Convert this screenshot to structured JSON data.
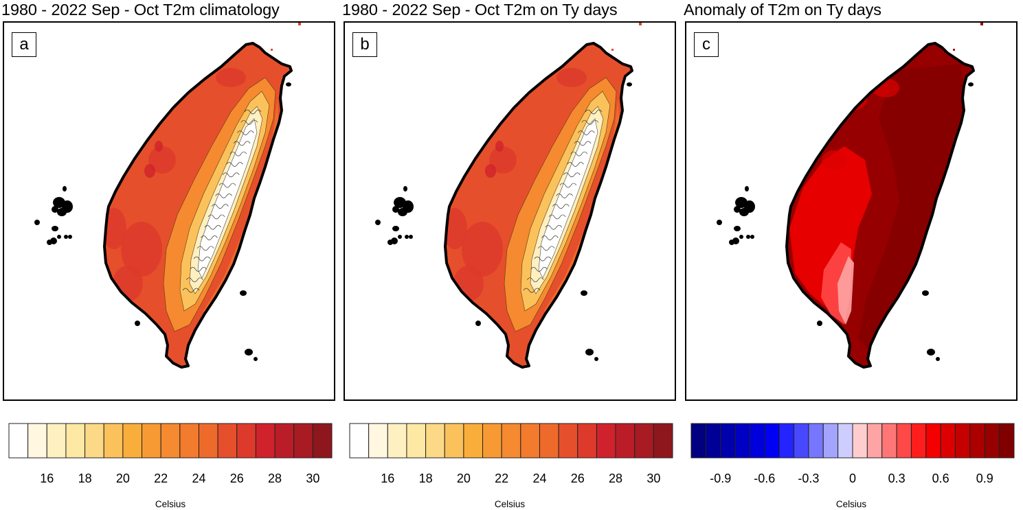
{
  "figure": {
    "panels": [
      {
        "id": "a",
        "title": "1980 - 2022 Sep - Oct T2m climatology",
        "label": "a",
        "field": "t2m-climatology",
        "colorbar": {
          "unit": "Celsius",
          "colors": [
            "#ffffff",
            "#fff7e0",
            "#fff0c2",
            "#fde8a4",
            "#fcd986",
            "#fbc25c",
            "#f9ae3b",
            "#f89a33",
            "#f58a30",
            "#f27b2d",
            "#ee6a2b",
            "#e64f2b",
            "#dd3a2b",
            "#d0222c",
            "#bb1d28",
            "#a81b23",
            "#8e171d"
          ],
          "ticks": [
            "16",
            "18",
            "20",
            "22",
            "24",
            "26",
            "28",
            "30"
          ],
          "tick_positions": [
            2,
            4,
            6,
            8,
            10,
            12,
            14,
            16
          ]
        }
      },
      {
        "id": "b",
        "title": "1980 - 2022 Sep - Oct T2m on Ty days",
        "label": "b",
        "field": "t2m-typhoon-days",
        "colorbar": {
          "unit": "Celsius",
          "colors": [
            "#ffffff",
            "#fff7e0",
            "#fff0c2",
            "#fde8a4",
            "#fcd986",
            "#fbc25c",
            "#f9ae3b",
            "#f89a33",
            "#f58a30",
            "#f27b2d",
            "#ee6a2b",
            "#e64f2b",
            "#dd3a2b",
            "#d0222c",
            "#bb1d28",
            "#a81b23",
            "#8e171d"
          ],
          "ticks": [
            "16",
            "18",
            "20",
            "22",
            "24",
            "26",
            "28",
            "30"
          ],
          "tick_positions": [
            2,
            4,
            6,
            8,
            10,
            12,
            14,
            16
          ]
        }
      },
      {
        "id": "c",
        "title": "Anomaly of T2m on Ty days",
        "label": "c",
        "field": "t2m-anomaly",
        "colorbar": {
          "unit": "Celsius",
          "colors": [
            "#000080",
            "#000096",
            "#0000ac",
            "#0000c4",
            "#0000dc",
            "#0000f4",
            "#2424ff",
            "#4848ff",
            "#7676ff",
            "#a4a4ff",
            "#cdcdff",
            "#ffcdcd",
            "#ffa4a4",
            "#ff7676",
            "#ff4848",
            "#ff1d1d",
            "#f40000",
            "#dc0000",
            "#c40000",
            "#ac0000",
            "#960000",
            "#800000"
          ],
          "ticks": [
            "-0.9",
            "-0.6",
            "-0.3",
            "0",
            "0.3",
            "0.6",
            "0.9"
          ],
          "tick_positions": [
            2,
            5,
            8,
            11,
            14,
            17,
            20
          ]
        }
      }
    ]
  },
  "chart_data": [
    {
      "type": "heatmap",
      "title": "1980 - 2022 Sep - Oct T2m climatology",
      "panel_label": "a",
      "region": "Taiwan",
      "variable": "2 m air temperature (T2m)",
      "period": "1980-2022, Sep-Oct",
      "colorbar_label": "Celsius",
      "levels": [
        15,
        16,
        17,
        18,
        19,
        20,
        21,
        22,
        23,
        24,
        25,
        26,
        27,
        28,
        29,
        30
      ],
      "tick_labels": [
        "16",
        "18",
        "20",
        "22",
        "24",
        "26",
        "28",
        "30"
      ],
      "value_range": [
        15,
        31
      ],
      "description": "Warm lowlands (26-30 °C) on western plains; cool central mountain range (<16 °C) shown white/pale yellow."
    },
    {
      "type": "heatmap",
      "title": "1980 - 2022 Sep - Oct T2m on Ty days",
      "panel_label": "b",
      "region": "Taiwan",
      "variable": "2 m air temperature (T2m) on typhoon days",
      "period": "1980-2022, Sep-Oct",
      "colorbar_label": "Celsius",
      "levels": [
        15,
        16,
        17,
        18,
        19,
        20,
        21,
        22,
        23,
        24,
        25,
        26,
        27,
        28,
        29,
        30
      ],
      "tick_labels": [
        "16",
        "18",
        "20",
        "22",
        "24",
        "26",
        "28",
        "30"
      ],
      "value_range": [
        15,
        31
      ]
    },
    {
      "type": "heatmap",
      "title": "Anomaly of T2m on Ty days",
      "panel_label": "c",
      "region": "Taiwan",
      "variable": "T2m anomaly on typhoon days",
      "colorbar_label": "Celsius",
      "levels": [
        -1.0,
        -0.9,
        -0.8,
        -0.7,
        -0.6,
        -0.5,
        -0.4,
        -0.3,
        -0.2,
        -0.1,
        0,
        0.1,
        0.2,
        0.3,
        0.4,
        0.5,
        0.6,
        0.7,
        0.8,
        0.9,
        1.0
      ],
      "tick_labels": [
        "-0.9",
        "-0.6",
        "-0.3",
        "0",
        "0.3",
        "0.6",
        "0.9"
      ],
      "value_range": [
        -1.1,
        1.1
      ],
      "description": "Positive anomalies island-wide; strongest (>0.9) over central/eastern mountains, weaker (0.1-0.4) on southwestern lee side."
    }
  ]
}
